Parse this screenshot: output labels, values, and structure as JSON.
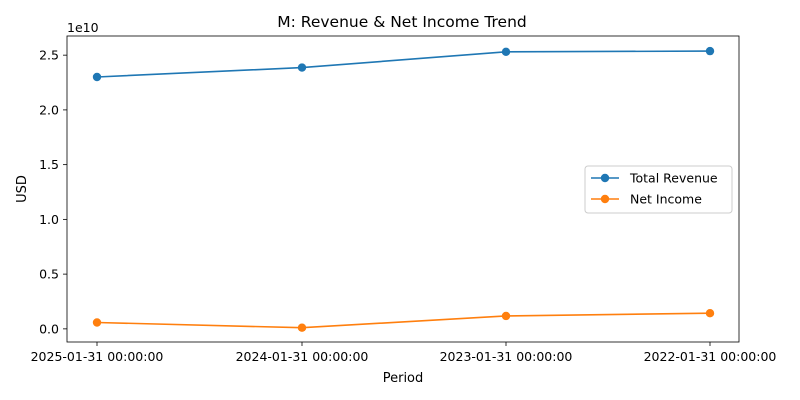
{
  "chart_data": {
    "type": "line",
    "title": "M: Revenue & Net Income Trend",
    "xlabel": "Period",
    "ylabel": "USD",
    "y_offset_label": "1e10",
    "y_scale": 10000000000,
    "categories": [
      "2025-01-31 00:00:00",
      "2024-01-31 00:00:00",
      "2023-01-31 00:00:00",
      "2022-01-31 00:00:00"
    ],
    "series": [
      {
        "name": "Total Revenue",
        "color": "#1f77b4",
        "values": [
          23006000000,
          23866000000,
          25305000000,
          25371000000
        ]
      },
      {
        "name": "Net Income",
        "color": "#ff7f0e",
        "values": [
          582000000,
          105000000,
          1177000000,
          1430000000
        ]
      }
    ],
    "ylim": [
      -1200000000,
      26750000000
    ],
    "yticks": [
      0,
      5000000000,
      10000000000,
      15000000000,
      20000000000,
      25000000000
    ],
    "ytick_labels": [
      "0.0",
      "0.5",
      "1.0",
      "1.5",
      "2.0",
      "2.5"
    ],
    "legend_position": "center-right",
    "grid": false
  }
}
